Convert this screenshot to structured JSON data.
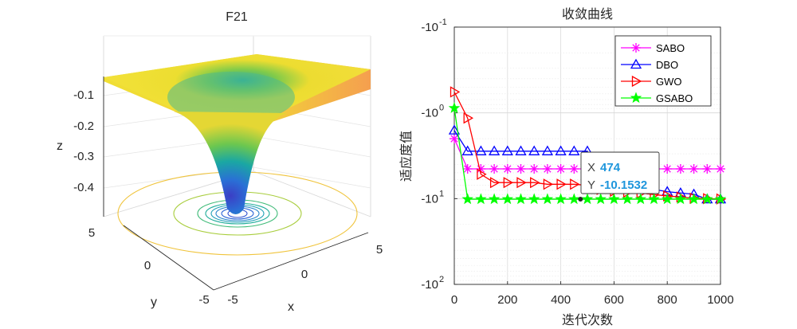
{
  "chart_data": [
    {
      "type": "surface3d",
      "title": "F21",
      "xlabel": "x",
      "ylabel": "y",
      "zlabel": "z",
      "x_ticks": [
        "-5",
        "0",
        "5"
      ],
      "y_ticks": [
        "-5",
        "0",
        "5"
      ],
      "z_ticks": [
        "-0.1",
        "-0.2",
        "-0.3",
        "-0.4"
      ],
      "xlim": [
        -5,
        5
      ],
      "ylim": [
        -5,
        5
      ],
      "zlim": [
        -0.45,
        -0.05
      ],
      "surface": "inverted bell-shaped well centred at the origin with a contour plot projected underneath"
    },
    {
      "type": "line",
      "title": "收敛曲线",
      "xlabel": "迭代次数",
      "ylabel": "适应度值",
      "xlim": [
        0,
        1000
      ],
      "x_ticks": [
        "0",
        "200",
        "400",
        "600",
        "800",
        "1000"
      ],
      "y_ticks": [
        {
          "base": "-10",
          "exp": "-1"
        },
        {
          "base": "-10",
          "exp": "0"
        },
        {
          "base": "-10",
          "exp": "1"
        },
        {
          "base": "-10",
          "exp": "2"
        }
      ],
      "y_scale": "symlog",
      "legend_position": "top-right",
      "series": [
        {
          "name": "SABO",
          "color": "#ff00ff",
          "marker": "star",
          "x": [
            0,
            50,
            100,
            150,
            200,
            250,
            300,
            350,
            400,
            450,
            500,
            550,
            600,
            650,
            700,
            750,
            800,
            850,
            900,
            950,
            1000
          ],
          "y": [
            -2.0,
            -4.5,
            -4.5,
            -4.5,
            -4.5,
            -4.5,
            -4.5,
            -4.5,
            -4.5,
            -4.5,
            -4.5,
            -4.5,
            -4.5,
            -4.5,
            -4.5,
            -4.5,
            -4.5,
            -4.5,
            -4.5,
            -4.5,
            -4.5
          ]
        },
        {
          "name": "DBO",
          "color": "#0000ff",
          "marker": "triangle-up",
          "x": [
            0,
            50,
            100,
            150,
            200,
            250,
            300,
            350,
            400,
            450,
            500,
            550,
            600,
            650,
            700,
            750,
            800,
            850,
            900,
            950,
            1000
          ],
          "y": [
            -1.6,
            -2.8,
            -2.8,
            -2.8,
            -2.8,
            -2.8,
            -2.8,
            -2.8,
            -2.8,
            -2.8,
            -2.8,
            -7.8,
            -7.8,
            -7.8,
            -7.8,
            -7.8,
            -8.3,
            -8.6,
            -8.9,
            -10.1532,
            -10.1532
          ]
        },
        {
          "name": "GWO",
          "color": "#ff0000",
          "marker": "triangle-right",
          "x": [
            0,
            50,
            100,
            150,
            200,
            250,
            300,
            350,
            400,
            450,
            500,
            550,
            600,
            650,
            700,
            750,
            800,
            850,
            900,
            950,
            1000
          ],
          "y": [
            -0.57,
            -1.15,
            -5.2,
            -6.5,
            -6.5,
            -6.5,
            -6.5,
            -6.8,
            -6.8,
            -6.8,
            -7.0,
            -7.8,
            -8.2,
            -8.4,
            -8.6,
            -9.0,
            -9.3,
            -9.6,
            -9.9,
            -10.0,
            -10.1
          ]
        },
        {
          "name": "GSABO",
          "color": "#00ff00",
          "marker": "pentagram",
          "x": [
            0,
            50,
            100,
            150,
            200,
            250,
            300,
            350,
            400,
            450,
            500,
            550,
            600,
            650,
            700,
            750,
            800,
            850,
            900,
            950,
            1000
          ],
          "y": [
            -0.88,
            -10.1532,
            -10.1532,
            -10.1532,
            -10.1532,
            -10.1532,
            -10.1532,
            -10.1532,
            -10.1532,
            -10.1532,
            -10.1532,
            -10.1532,
            -10.1532,
            -10.1532,
            -10.1532,
            -10.1532,
            -10.1532,
            -10.1532,
            -10.1532,
            -10.1532,
            -10.1532
          ]
        }
      ],
      "datatip": {
        "x": 474,
        "y": -10.1532,
        "x_label": "X",
        "y_label": "Y",
        "x_text": "474",
        "y_text": "-10.1532"
      }
    }
  ],
  "colors": {
    "axis": "#262626",
    "grid": "#dcdcdc",
    "surface_low": "#3b3fc5",
    "surface_mid": "#1aa7a3",
    "surface_high": "#f2de2c",
    "surface_edge": "#f7a94c"
  }
}
